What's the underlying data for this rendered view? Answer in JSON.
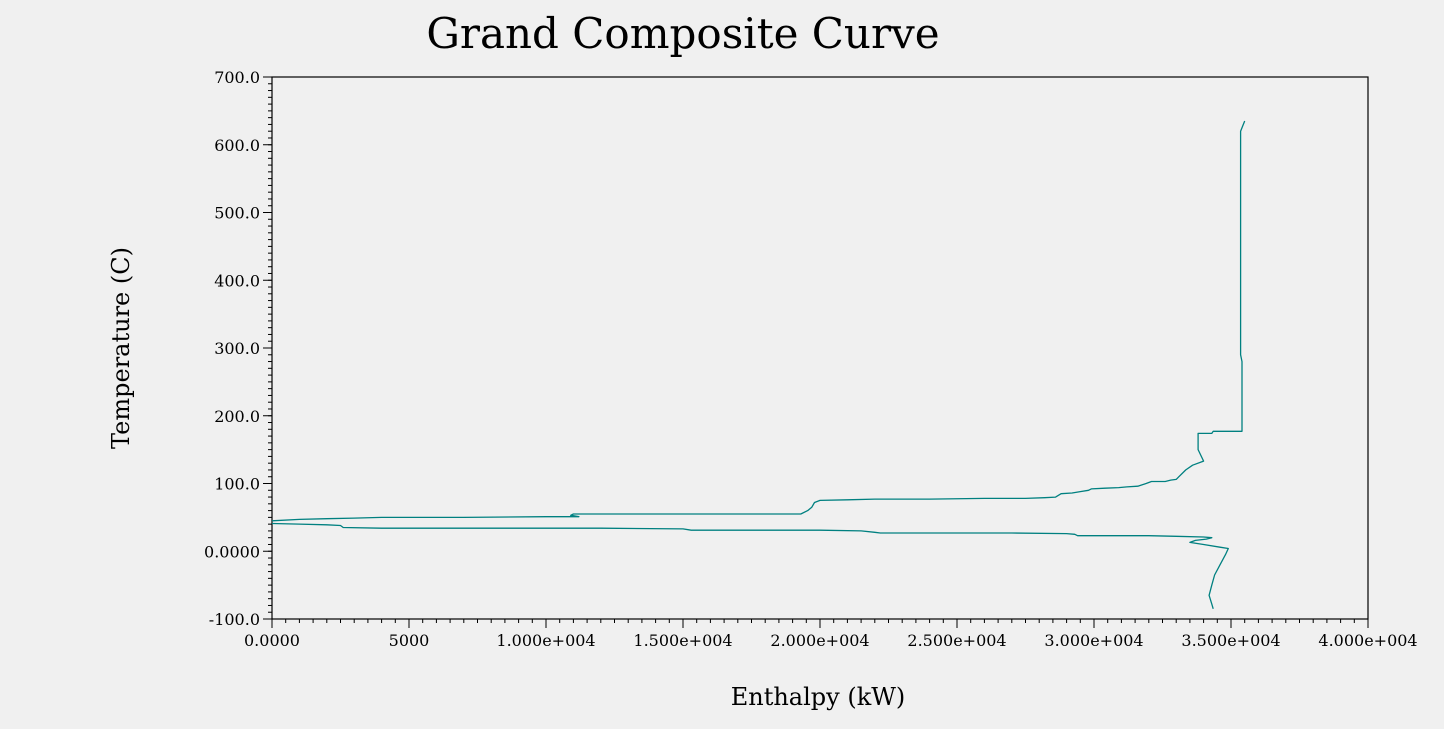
{
  "chart_data": {
    "type": "line",
    "title": "Grand Composite Curve",
    "xlabel": "Enthalpy (kW)",
    "ylabel": "Temperature (C)",
    "xlim": [
      0,
      40000
    ],
    "ylim": [
      -100,
      700
    ],
    "x_ticks": [
      {
        "value": 0,
        "label": "0.0000"
      },
      {
        "value": 5000,
        "label": "5000"
      },
      {
        "value": 10000,
        "label": "1.000e+004"
      },
      {
        "value": 15000,
        "label": "1.500e+004"
      },
      {
        "value": 20000,
        "label": "2.000e+004"
      },
      {
        "value": 25000,
        "label": "2.500e+004"
      },
      {
        "value": 30000,
        "label": "3.000e+004"
      },
      {
        "value": 35000,
        "label": "3.500e+004"
      },
      {
        "value": 40000,
        "label": "4.000e+004"
      }
    ],
    "y_ticks": [
      {
        "value": 700,
        "label": "700.0"
      },
      {
        "value": 600,
        "label": "600.0"
      },
      {
        "value": 500,
        "label": "500.0"
      },
      {
        "value": 400,
        "label": "400.0"
      },
      {
        "value": 300,
        "label": "300.0"
      },
      {
        "value": 200,
        "label": "200.0"
      },
      {
        "value": 100,
        "label": "100.0"
      },
      {
        "value": 0,
        "label": "0.0000"
      },
      {
        "value": -100,
        "label": "-100.0"
      }
    ],
    "grid": false,
    "line_color": "#008080",
    "series": [
      {
        "points": [
          [
            35500,
            635
          ],
          [
            35350,
            620
          ],
          [
            35350,
            290
          ],
          [
            35400,
            280
          ],
          [
            35400,
            177
          ],
          [
            34350,
            177
          ],
          [
            34300,
            174
          ],
          [
            33800,
            174
          ],
          [
            33800,
            150
          ],
          [
            34000,
            133
          ],
          [
            33600,
            127
          ],
          [
            33350,
            120
          ],
          [
            33100,
            110
          ],
          [
            33000,
            106
          ],
          [
            32800,
            105
          ],
          [
            32600,
            103
          ],
          [
            32100,
            103
          ],
          [
            31900,
            100
          ],
          [
            31600,
            96
          ],
          [
            31200,
            95
          ],
          [
            30900,
            94
          ],
          [
            30400,
            93
          ],
          [
            29900,
            92
          ],
          [
            29800,
            90
          ],
          [
            29500,
            88
          ],
          [
            29200,
            86
          ],
          [
            28800,
            85
          ],
          [
            28600,
            80
          ],
          [
            28200,
            79
          ],
          [
            27500,
            78
          ],
          [
            26000,
            78
          ],
          [
            24000,
            77
          ],
          [
            22000,
            77
          ],
          [
            21000,
            76
          ],
          [
            20000,
            75
          ],
          [
            19800,
            72
          ],
          [
            19700,
            65
          ],
          [
            19550,
            60
          ],
          [
            19300,
            55
          ],
          [
            16000,
            55
          ],
          [
            12000,
            55
          ],
          [
            11000,
            55
          ],
          [
            10900,
            53
          ],
          [
            11200,
            51
          ],
          [
            10700,
            51
          ],
          [
            10000,
            51
          ],
          [
            7000,
            50
          ],
          [
            4000,
            50
          ],
          [
            3000,
            49
          ],
          [
            2000,
            48
          ],
          [
            1000,
            47
          ],
          [
            0,
            45
          ]
        ]
      },
      {
        "points": [
          [
            0,
            41
          ],
          [
            1000,
            40
          ],
          [
            2000,
            39
          ],
          [
            2500,
            38
          ],
          [
            2600,
            35
          ],
          [
            4000,
            34
          ],
          [
            7000,
            34
          ],
          [
            10000,
            34
          ],
          [
            12000,
            34
          ],
          [
            15000,
            33
          ],
          [
            15300,
            31
          ],
          [
            17000,
            31
          ],
          [
            20000,
            31
          ],
          [
            21500,
            30
          ],
          [
            22000,
            28
          ],
          [
            22200,
            27
          ],
          [
            25000,
            27
          ],
          [
            27000,
            27
          ],
          [
            29000,
            26
          ],
          [
            29300,
            25
          ],
          [
            29400,
            23
          ],
          [
            30000,
            23
          ],
          [
            32000,
            23
          ],
          [
            33000,
            22
          ],
          [
            34000,
            21
          ],
          [
            34300,
            20
          ],
          [
            34100,
            18
          ],
          [
            33700,
            16
          ],
          [
            33500,
            13
          ],
          [
            34000,
            10
          ],
          [
            34600,
            6
          ],
          [
            34900,
            4
          ],
          [
            34800,
            -5
          ],
          [
            34600,
            -20
          ],
          [
            34400,
            -35
          ],
          [
            34300,
            -50
          ],
          [
            34200,
            -65
          ],
          [
            34300,
            -78
          ],
          [
            34350,
            -85
          ]
        ]
      }
    ]
  }
}
